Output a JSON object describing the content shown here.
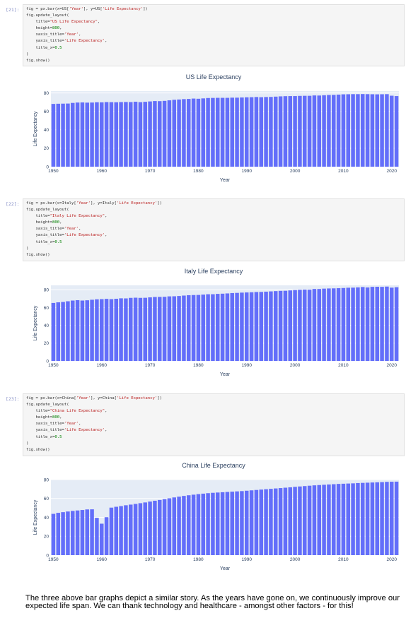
{
  "cells": [
    {
      "prompt": "[21]:",
      "code_lines": [
        "fig = px.bar(x=US['Year'], y=US['Life Expectancy'])",
        "fig.update_layout(",
        "    title=\"US Life Expectancy\",",
        "    height=800,",
        "    xaxis_title='Year',",
        "    yaxis_title='Life Expectancy',",
        "    title_x=0.5",
        ")",
        "fig.show()"
      ]
    },
    {
      "prompt": "[22]:",
      "code_lines": [
        "fig = px.bar(x=Italy['Year'], y=Italy['Life Expectancy'])",
        "fig.update_layout(",
        "    title=\"Italy Life Expectancy\",",
        "    height=800,",
        "    xaxis_title='Year',",
        "    yaxis_title='Life Expectancy',",
        "    title_x=0.5",
        ")",
        "fig.show()"
      ]
    },
    {
      "prompt": "[23]:",
      "code_lines": [
        "fig = px.bar(x=China['Year'], y=China['Life Expectancy'])",
        "fig.update_layout(",
        "    title=\"China Life Expectancy\",",
        "    height=800,",
        "    xaxis_title='Year',",
        "    yaxis_title='Life Expectancy',",
        "    title_x=0.5",
        ")",
        "fig.show()"
      ]
    }
  ],
  "chart_data": [
    {
      "type": "bar",
      "title": "US Life Expectancy",
      "xlabel": "Year",
      "ylabel": "Life Expectancy",
      "x_start": 1950,
      "xticks": [
        1950,
        1960,
        1970,
        1980,
        1990,
        2000,
        2010,
        2020
      ],
      "yticks": [
        0,
        20,
        40,
        60,
        80
      ],
      "ylim": [
        0,
        82
      ],
      "bar_color": "#636efa",
      "plot_bg": "#e5ecf6",
      "values": [
        68.1,
        68.3,
        68.4,
        68.5,
        69.2,
        69.6,
        69.7,
        69.5,
        69.6,
        69.9,
        69.8,
        70.1,
        70.0,
        69.9,
        70.1,
        70.2,
        70.1,
        70.5,
        70.0,
        70.4,
        70.8,
        71.2,
        71.1,
        71.4,
        72.0,
        72.6,
        72.9,
        73.3,
        73.5,
        73.9,
        73.7,
        74.1,
        74.5,
        74.6,
        74.7,
        74.7,
        74.7,
        74.9,
        74.9,
        75.1,
        75.3,
        75.4,
        75.6,
        75.4,
        75.6,
        75.7,
        76.0,
        76.3,
        76.5,
        76.6,
        76.6,
        76.8,
        76.9,
        76.9,
        77.3,
        77.2,
        77.5,
        77.8,
        77.9,
        78.2,
        78.5,
        78.6,
        78.7,
        78.7,
        78.8,
        78.7,
        78.6,
        78.5,
        78.6,
        78.7,
        77.0,
        76.6
      ]
    },
    {
      "type": "bar",
      "title": "Italy Life Expectancy",
      "xlabel": "Year",
      "ylabel": "Life Expectancy",
      "x_start": 1950,
      "xticks": [
        1950,
        1960,
        1970,
        1980,
        1990,
        2000,
        2010,
        2020
      ],
      "yticks": [
        0,
        20,
        40,
        60,
        80
      ],
      "ylim": [
        0,
        85
      ],
      "bar_color": "#636efa",
      "plot_bg": "#e5ecf6",
      "values": [
        65.2,
        65.9,
        66.3,
        67.1,
        67.9,
        68.3,
        67.9,
        68.2,
        68.8,
        69.3,
        69.5,
        69.8,
        69.5,
        69.9,
        70.4,
        70.3,
        70.9,
        71.1,
        70.9,
        71.0,
        71.5,
        71.9,
        72.0,
        72.1,
        72.6,
        72.7,
        73.0,
        73.5,
        73.9,
        74.1,
        74.2,
        74.6,
        75.0,
        75.0,
        75.4,
        75.6,
        75.9,
        76.3,
        76.5,
        76.8,
        77.0,
        77.2,
        77.5,
        77.6,
        77.9,
        78.2,
        78.5,
        78.8,
        78.9,
        79.3,
        79.7,
        80.0,
        80.2,
        80.1,
        80.9,
        80.9,
        81.3,
        81.5,
        81.6,
        81.8,
        82.0,
        82.3,
        82.4,
        82.7,
        83.1,
        82.6,
        83.3,
        83.4,
        83.3,
        83.6,
        82.4,
        82.9
      ]
    },
    {
      "type": "bar",
      "title": "China Life Expectancy",
      "xlabel": "Year",
      "ylabel": "Life Expectancy",
      "x_start": 1950,
      "xticks": [
        1950,
        1960,
        1970,
        1980,
        1990,
        2000,
        2010,
        2020
      ],
      "yticks": [
        0,
        20,
        40,
        60,
        80
      ],
      "ylim": [
        0,
        80
      ],
      "bar_color": "#636efa",
      "plot_bg": "#e5ecf6",
      "values": [
        43.7,
        44.8,
        45.5,
        46.2,
        46.8,
        47.3,
        47.8,
        48.4,
        48.5,
        39.5,
        33.3,
        40.2,
        50.3,
        51.2,
        51.9,
        52.8,
        53.5,
        54.2,
        55.0,
        55.8,
        56.7,
        57.6,
        58.4,
        59.3,
        60.2,
        61.1,
        61.9,
        62.7,
        63.4,
        64.0,
        64.6,
        65.1,
        65.6,
        66.0,
        66.3,
        66.6,
        66.9,
        67.2,
        67.5,
        67.8,
        68.2,
        68.6,
        69.0,
        69.4,
        69.8,
        70.2,
        70.6,
        71.0,
        71.4,
        71.8,
        72.3,
        72.7,
        73.1,
        73.5,
        73.9,
        74.2,
        74.5,
        74.8,
        75.1,
        75.4,
        75.6,
        75.8,
        76.0,
        76.3,
        76.5,
        76.7,
        76.9,
        77.1,
        77.3,
        77.6,
        77.7,
        77.8
      ]
    }
  ],
  "markdown": {
    "text": "The three above bar graphs depict a similar story. As the years have gone on, we continuously improve our expected life span. We can thank technology and healthcare - amongst other factors - for this!"
  }
}
